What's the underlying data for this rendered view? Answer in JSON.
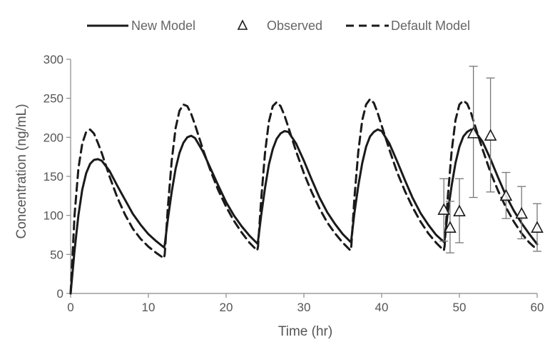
{
  "chart_data": {
    "type": "line",
    "title": "",
    "xlabel": "Time (hr)",
    "ylabel": "Concentration (ng/mL)",
    "xlim": [
      0,
      60
    ],
    "ylim": [
      0,
      300
    ],
    "xticks": [
      0,
      10,
      20,
      30,
      40,
      50,
      60
    ],
    "yticks": [
      0,
      50,
      100,
      150,
      200,
      250,
      300
    ],
    "grid": false,
    "legend": {
      "placement": "top-center",
      "items": [
        {
          "label": "New Model",
          "style": "solid-line"
        },
        {
          "label": "Observed",
          "style": "open-triangle"
        },
        {
          "label": "Default Model",
          "style": "dashed-line"
        }
      ]
    },
    "colors": {
      "lines": "#1a1a1a",
      "axes": "#8a8a8a",
      "text": "#555555",
      "error_bars": "#777777"
    },
    "series": [
      {
        "name": "New Model",
        "style": "solid",
        "x": [
          0,
          0.5,
          1,
          1.5,
          2,
          2.5,
          3,
          3.5,
          4,
          5,
          6,
          7,
          8,
          9,
          10,
          11,
          12,
          12.1,
          12.5,
          13,
          13.5,
          14,
          14.5,
          15,
          15.5,
          16,
          17,
          18,
          19,
          20,
          21,
          22,
          23,
          24,
          24.1,
          24.5,
          25,
          25.5,
          26,
          26.5,
          27,
          27.5,
          28,
          29,
          30,
          31,
          32,
          33,
          34,
          35,
          36,
          36.1,
          36.5,
          37,
          37.5,
          38,
          38.5,
          39,
          39.5,
          40,
          41,
          42,
          43,
          44,
          45,
          46,
          47,
          48,
          48.1,
          48.5,
          49,
          49.5,
          50,
          50.5,
          51,
          51.5,
          52,
          53,
          54,
          55,
          56,
          57,
          58,
          59,
          60
        ],
        "y": [
          0,
          55,
          100,
          133,
          154,
          166,
          171,
          172,
          170,
          157,
          138,
          120,
          102,
          88,
          76,
          67,
          59,
          62,
          95,
          130,
          160,
          180,
          193,
          200,
          202,
          199,
          182,
          160,
          138,
          117,
          100,
          86,
          74,
          64,
          67,
          100,
          135,
          165,
          185,
          198,
          205,
          208,
          207,
          192,
          170,
          146,
          123,
          104,
          89,
          76,
          66,
          69,
          103,
          138,
          167,
          188,
          201,
          207,
          210,
          208,
          192,
          169,
          145,
          122,
          103,
          88,
          75,
          66,
          69,
          103,
          138,
          167,
          188,
          201,
          207,
          210,
          208,
          194,
          172,
          148,
          125,
          106,
          90,
          76,
          63
        ]
      },
      {
        "name": "Default Model",
        "style": "dashed",
        "x": [
          0,
          0.5,
          1,
          1.5,
          2,
          2.5,
          3,
          3.5,
          4,
          5,
          6,
          7,
          8,
          9,
          10,
          11,
          12,
          12.1,
          12.5,
          13,
          13.5,
          14,
          14.5,
          15,
          15.5,
          16,
          17,
          18,
          19,
          20,
          21,
          22,
          23,
          24,
          24.1,
          24.5,
          25,
          25.5,
          26,
          26.5,
          27,
          27.5,
          28,
          29,
          30,
          31,
          32,
          33,
          34,
          35,
          36,
          36.1,
          36.5,
          37,
          37.5,
          38,
          38.5,
          39,
          39.5,
          40,
          41,
          42,
          43,
          44,
          45,
          46,
          47,
          48,
          48.1,
          48.5,
          49,
          49.5,
          50,
          50.5,
          51,
          51.5,
          52,
          53,
          54,
          55,
          56,
          57,
          58,
          59,
          60
        ],
        "y": [
          0,
          100,
          160,
          192,
          207,
          210,
          205,
          193,
          180,
          150,
          123,
          101,
          83,
          70,
          60,
          52,
          45,
          50,
          110,
          170,
          212,
          234,
          242,
          240,
          230,
          216,
          185,
          157,
          132,
          111,
          93,
          78,
          65,
          55,
          60,
          120,
          180,
          220,
          240,
          245,
          240,
          228,
          213,
          182,
          154,
          130,
          109,
          91,
          77,
          65,
          55,
          61,
          122,
          182,
          222,
          242,
          249,
          244,
          231,
          215,
          184,
          155,
          131,
          110,
          92,
          77,
          65,
          55,
          61,
          122,
          182,
          222,
          242,
          247,
          243,
          231,
          215,
          184,
          155,
          131,
          110,
          92,
          77,
          65,
          56
        ]
      }
    ],
    "observed": {
      "name": "Observed",
      "x": [
        48,
        48.8,
        50,
        51.8,
        54,
        56,
        58,
        60
      ],
      "y": [
        107,
        84,
        105,
        205,
        202,
        125,
        102,
        84
      ],
      "err_low": [
        67,
        52,
        65,
        123,
        130,
        96,
        70,
        54
      ],
      "err_high": [
        147,
        118,
        147,
        291,
        276,
        155,
        137,
        115
      ]
    }
  }
}
